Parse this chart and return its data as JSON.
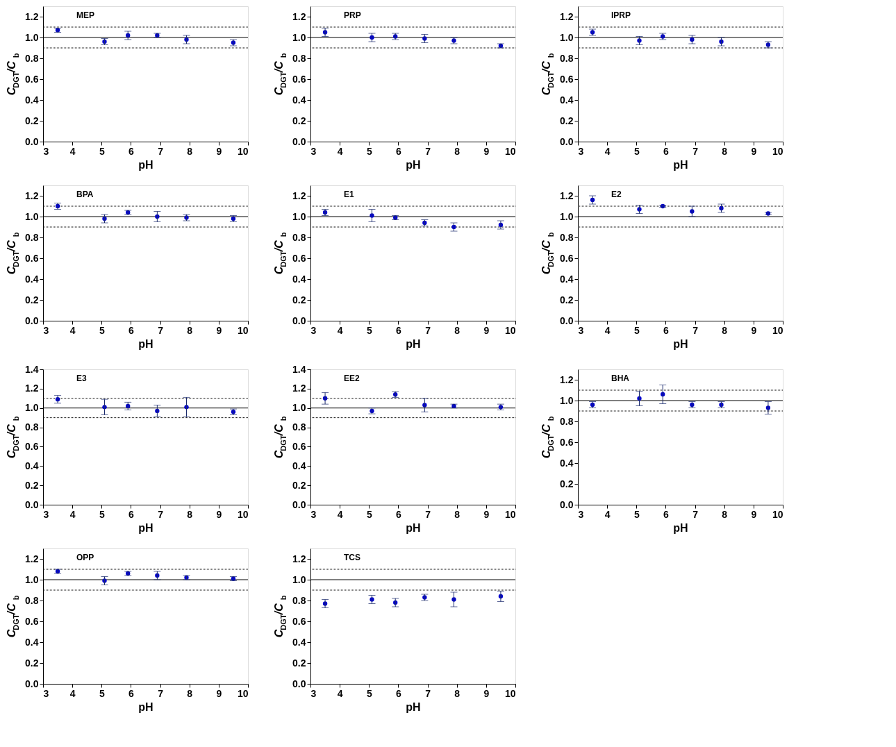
{
  "chart_data": [
    {
      "type": "scatter",
      "title": "MEP",
      "xlabel": "pH",
      "ylabel": "C$_{DGT}$/C$_{b}$",
      "x": [
        3.5,
        5.1,
        5.9,
        6.9,
        7.9,
        9.5
      ],
      "series": [
        {
          "color": "#0000cc",
          "values": [
            1.07,
            0.96,
            1.02,
            1.02,
            0.98,
            0.95
          ],
          "errors": [
            0.02,
            0.03,
            0.04,
            0.02,
            0.04,
            0.03
          ]
        }
      ],
      "xlim": [
        3,
        10
      ],
      "xticks": [
        3,
        4,
        5,
        6,
        7,
        8,
        9,
        10
      ],
      "ylim": [
        0,
        1.3
      ],
      "yticks": [
        {
          "value": 0,
          "label": "0.0"
        },
        {
          "value": 0.2,
          "label": "0.2"
        },
        {
          "value": 0.4,
          "label": "0.4"
        },
        {
          "value": 0.6,
          "label": "0.6"
        },
        {
          "value": 0.8,
          "label": "0.8"
        },
        {
          "value": 1,
          "label": "1.0"
        },
        {
          "value": 1.2,
          "label": "1.2"
        }
      ],
      "marker": "circle",
      "grid": false,
      "ref_lines": [
        {
          "axis": "y",
          "value": 1.0,
          "line_style": "solid"
        },
        {
          "axis": "y",
          "value": 1.1,
          "line_style": "dotted"
        },
        {
          "axis": "y",
          "value": 0.9,
          "line_style": "dotted"
        }
      ]
    },
    {
      "type": "scatter",
      "title": "PRP",
      "xlabel": "pH",
      "ylabel": "C$_{DGT}$/C$_{b}$",
      "x": [
        3.5,
        5.1,
        5.9,
        6.9,
        7.9,
        9.5
      ],
      "series": [
        {
          "color": "#0000cc",
          "values": [
            1.05,
            1.0,
            1.01,
            0.99,
            0.97,
            0.92
          ],
          "errors": [
            0.04,
            0.04,
            0.03,
            0.04,
            0.03,
            0.02
          ]
        }
      ],
      "xlim": [
        3,
        10
      ],
      "xticks": [
        3,
        4,
        5,
        6,
        7,
        8,
        9,
        10
      ],
      "ylim": [
        0,
        1.3
      ],
      "yticks": [
        {
          "value": 0,
          "label": "0.0"
        },
        {
          "value": 0.2,
          "label": "0.2"
        },
        {
          "value": 0.4,
          "label": "0.4"
        },
        {
          "value": 0.6,
          "label": "0.6"
        },
        {
          "value": 0.8,
          "label": "0.8"
        },
        {
          "value": 1,
          "label": "1.0"
        },
        {
          "value": 1.2,
          "label": "1.2"
        }
      ],
      "marker": "circle",
      "grid": false,
      "ref_lines": [
        {
          "axis": "y",
          "value": 1.0,
          "line_style": "solid"
        },
        {
          "axis": "y",
          "value": 1.1,
          "line_style": "dotted"
        },
        {
          "axis": "y",
          "value": 0.9,
          "line_style": "dotted"
        }
      ]
    },
    {
      "type": "scatter",
      "title": "IPRP",
      "xlabel": "pH",
      "ylabel": "C$_{DGT}$/C$_{b}$",
      "x": [
        3.5,
        5.1,
        5.9,
        6.9,
        7.9,
        9.5
      ],
      "series": [
        {
          "color": "#0000cc",
          "values": [
            1.05,
            0.97,
            1.01,
            0.98,
            0.96,
            0.93
          ],
          "errors": [
            0.03,
            0.04,
            0.03,
            0.04,
            0.04,
            0.03
          ]
        }
      ],
      "xlim": [
        3,
        10
      ],
      "xticks": [
        3,
        4,
        5,
        6,
        7,
        8,
        9,
        10
      ],
      "ylim": [
        0,
        1.3
      ],
      "yticks": [
        {
          "value": 0,
          "label": "0.0"
        },
        {
          "value": 0.2,
          "label": "0.2"
        },
        {
          "value": 0.4,
          "label": "0.4"
        },
        {
          "value": 0.6,
          "label": "0.6"
        },
        {
          "value": 0.8,
          "label": "0.8"
        },
        {
          "value": 1,
          "label": "1.0"
        },
        {
          "value": 1.2,
          "label": "1.2"
        }
      ],
      "marker": "circle",
      "grid": false,
      "ref_lines": [
        {
          "axis": "y",
          "value": 1.0,
          "line_style": "solid"
        },
        {
          "axis": "y",
          "value": 1.1,
          "line_style": "dotted"
        },
        {
          "axis": "y",
          "value": 0.9,
          "line_style": "dotted"
        }
      ]
    },
    {
      "type": "scatter",
      "title": "BPA",
      "xlabel": "pH",
      "ylabel": "C$_{DGT}$/C$_{b}$",
      "x": [
        3.5,
        5.1,
        5.9,
        6.9,
        7.9,
        9.5
      ],
      "series": [
        {
          "color": "#0000cc",
          "values": [
            1.1,
            0.98,
            1.04,
            1.0,
            0.99,
            0.98
          ],
          "errors": [
            0.03,
            0.04,
            0.02,
            0.05,
            0.03,
            0.03
          ]
        }
      ],
      "xlim": [
        3,
        10
      ],
      "xticks": [
        3,
        4,
        5,
        6,
        7,
        8,
        9,
        10
      ],
      "ylim": [
        0,
        1.3
      ],
      "yticks": [
        {
          "value": 0,
          "label": "0.0"
        },
        {
          "value": 0.2,
          "label": "0.2"
        },
        {
          "value": 0.4,
          "label": "0.4"
        },
        {
          "value": 0.6,
          "label": "0.6"
        },
        {
          "value": 0.8,
          "label": "0.8"
        },
        {
          "value": 1,
          "label": "1.0"
        },
        {
          "value": 1.2,
          "label": "1.2"
        }
      ],
      "marker": "circle",
      "grid": false,
      "ref_lines": [
        {
          "axis": "y",
          "value": 1.0,
          "line_style": "solid"
        },
        {
          "axis": "y",
          "value": 1.1,
          "line_style": "dotted"
        },
        {
          "axis": "y",
          "value": 0.9,
          "line_style": "dotted"
        }
      ]
    },
    {
      "type": "scatter",
      "title": "E1",
      "xlabel": "pH",
      "ylabel": "C$_{DGT}$/C$_{b}$",
      "x": [
        3.5,
        5.1,
        5.9,
        6.9,
        7.9,
        9.5
      ],
      "series": [
        {
          "color": "#0000cc",
          "values": [
            1.04,
            1.01,
            0.99,
            0.94,
            0.9,
            0.92
          ],
          "errors": [
            0.03,
            0.06,
            0.02,
            0.03,
            0.04,
            0.04
          ]
        }
      ],
      "xlim": [
        3,
        10
      ],
      "xticks": [
        3,
        4,
        5,
        6,
        7,
        8,
        9,
        10
      ],
      "ylim": [
        0,
        1.3
      ],
      "yticks": [
        {
          "value": 0,
          "label": "0.0"
        },
        {
          "value": 0.2,
          "label": "0.2"
        },
        {
          "value": 0.4,
          "label": "0.4"
        },
        {
          "value": 0.6,
          "label": "0.6"
        },
        {
          "value": 0.8,
          "label": "0.8"
        },
        {
          "value": 1,
          "label": "1.0"
        },
        {
          "value": 1.2,
          "label": "1.2"
        }
      ],
      "marker": "circle",
      "grid": false,
      "ref_lines": [
        {
          "axis": "y",
          "value": 1.0,
          "line_style": "solid"
        },
        {
          "axis": "y",
          "value": 1.1,
          "line_style": "dotted"
        },
        {
          "axis": "y",
          "value": 0.9,
          "line_style": "dotted"
        }
      ]
    },
    {
      "type": "scatter",
      "title": "E2",
      "xlabel": "pH",
      "ylabel": "C$_{DGT}$/C$_{b}$",
      "x": [
        3.5,
        5.1,
        5.9,
        6.9,
        7.9,
        9.5
      ],
      "series": [
        {
          "color": "#0000cc",
          "values": [
            1.16,
            1.07,
            1.1,
            1.05,
            1.08,
            1.03
          ],
          "errors": [
            0.04,
            0.04,
            0.01,
            0.05,
            0.04,
            0.01
          ]
        }
      ],
      "xlim": [
        3,
        10
      ],
      "xticks": [
        3,
        4,
        5,
        6,
        7,
        8,
        9,
        10
      ],
      "ylim": [
        0,
        1.3
      ],
      "yticks": [
        {
          "value": 0,
          "label": "0.0"
        },
        {
          "value": 0.2,
          "label": "0.2"
        },
        {
          "value": 0.4,
          "label": "0.4"
        },
        {
          "value": 0.6,
          "label": "0.6"
        },
        {
          "value": 0.8,
          "label": "0.8"
        },
        {
          "value": 1,
          "label": "1.0"
        },
        {
          "value": 1.2,
          "label": "1.2"
        }
      ],
      "marker": "circle",
      "grid": false,
      "ref_lines": [
        {
          "axis": "y",
          "value": 1.0,
          "line_style": "solid"
        },
        {
          "axis": "y",
          "value": 1.1,
          "line_style": "dotted"
        },
        {
          "axis": "y",
          "value": 0.9,
          "line_style": "dotted"
        }
      ]
    },
    {
      "type": "scatter",
      "title": "E3",
      "xlabel": "pH",
      "ylabel": "C$_{DGT}$/C$_{b}$",
      "x": [
        3.5,
        5.1,
        5.9,
        6.9,
        7.9,
        9.5
      ],
      "series": [
        {
          "color": "#0000cc",
          "values": [
            1.09,
            1.01,
            1.02,
            0.97,
            1.01,
            0.96
          ],
          "errors": [
            0.04,
            0.08,
            0.04,
            0.06,
            0.1,
            0.03
          ]
        }
      ],
      "xlim": [
        3,
        10
      ],
      "xticks": [
        3,
        4,
        5,
        6,
        7,
        8,
        9,
        10
      ],
      "ylim": [
        0,
        1.4
      ],
      "yticks": [
        {
          "value": 0,
          "label": "0.0"
        },
        {
          "value": 0.2,
          "label": "0.2"
        },
        {
          "value": 0.4,
          "label": "0.4"
        },
        {
          "value": 0.6,
          "label": "0.6"
        },
        {
          "value": 0.8,
          "label": "0.8"
        },
        {
          "value": 1,
          "label": "1.0"
        },
        {
          "value": 1.2,
          "label": "1.2"
        },
        {
          "value": 1.4,
          "label": "1.4"
        }
      ],
      "marker": "circle",
      "grid": false,
      "ref_lines": [
        {
          "axis": "y",
          "value": 1.0,
          "line_style": "solid"
        },
        {
          "axis": "y",
          "value": 1.1,
          "line_style": "dotted"
        },
        {
          "axis": "y",
          "value": 0.9,
          "line_style": "dotted"
        }
      ]
    },
    {
      "type": "scatter",
      "title": "EE2",
      "xlabel": "pH",
      "ylabel": "C$_{DGT}$/C$_{b}$",
      "x": [
        3.5,
        5.1,
        5.9,
        6.9,
        7.9,
        9.5
      ],
      "series": [
        {
          "color": "#0000cc",
          "values": [
            1.1,
            0.97,
            1.14,
            1.03,
            1.02,
            1.01
          ],
          "errors": [
            0.06,
            0.03,
            0.03,
            0.07,
            0.02,
            0.03
          ]
        }
      ],
      "xlim": [
        3,
        10
      ],
      "xticks": [
        3,
        4,
        5,
        6,
        7,
        8,
        9,
        10
      ],
      "ylim": [
        0,
        1.4
      ],
      "yticks": [
        {
          "value": 0,
          "label": "0.0"
        },
        {
          "value": 0.2,
          "label": "0.2"
        },
        {
          "value": 0.4,
          "label": "0.4"
        },
        {
          "value": 0.6,
          "label": "0.6"
        },
        {
          "value": 0.8,
          "label": "0.8"
        },
        {
          "value": 1,
          "label": "1.0"
        },
        {
          "value": 1.2,
          "label": "1.2"
        },
        {
          "value": 1.4,
          "label": "1.4"
        }
      ],
      "marker": "circle",
      "grid": false,
      "ref_lines": [
        {
          "axis": "y",
          "value": 1.0,
          "line_style": "solid"
        },
        {
          "axis": "y",
          "value": 1.1,
          "line_style": "dotted"
        },
        {
          "axis": "y",
          "value": 0.9,
          "line_style": "dotted"
        }
      ]
    },
    {
      "type": "scatter",
      "title": "BHA",
      "xlabel": "pH",
      "ylabel": "C$_{DGT}$/C$_{b}$",
      "x": [
        3.5,
        5.1,
        5.9,
        6.9,
        7.9,
        9.5
      ],
      "series": [
        {
          "color": "#0000cc",
          "values": [
            0.96,
            1.02,
            1.06,
            0.96,
            0.96,
            0.93
          ],
          "errors": [
            0.03,
            0.07,
            0.09,
            0.03,
            0.03,
            0.06
          ]
        }
      ],
      "xlim": [
        3,
        10
      ],
      "xticks": [
        3,
        4,
        5,
        6,
        7,
        8,
        9,
        10
      ],
      "ylim": [
        0,
        1.3
      ],
      "yticks": [
        {
          "value": 0,
          "label": "0.0"
        },
        {
          "value": 0.2,
          "label": "0.2"
        },
        {
          "value": 0.4,
          "label": "0.4"
        },
        {
          "value": 0.6,
          "label": "0.6"
        },
        {
          "value": 0.8,
          "label": "0.8"
        },
        {
          "value": 1,
          "label": "1.0"
        },
        {
          "value": 1.2,
          "label": "1.2"
        }
      ],
      "marker": "circle",
      "grid": false,
      "ref_lines": [
        {
          "axis": "y",
          "value": 1.0,
          "line_style": "solid"
        },
        {
          "axis": "y",
          "value": 1.1,
          "line_style": "dotted"
        },
        {
          "axis": "y",
          "value": 0.9,
          "line_style": "dotted"
        }
      ]
    },
    {
      "type": "scatter",
      "title": "OPP",
      "xlabel": "pH",
      "ylabel": "C$_{DGT}$/C$_{b}$",
      "x": [
        3.5,
        5.1,
        5.9,
        6.9,
        7.9,
        9.5
      ],
      "series": [
        {
          "color": "#0000cc",
          "values": [
            1.08,
            0.99,
            1.06,
            1.04,
            1.02,
            1.01
          ],
          "errors": [
            0.02,
            0.04,
            0.02,
            0.04,
            0.02,
            0.02
          ]
        }
      ],
      "xlim": [
        3,
        10
      ],
      "xticks": [
        3,
        4,
        5,
        6,
        7,
        8,
        9,
        10
      ],
      "ylim": [
        0,
        1.3
      ],
      "yticks": [
        {
          "value": 0,
          "label": "0.0"
        },
        {
          "value": 0.2,
          "label": "0.2"
        },
        {
          "value": 0.4,
          "label": "0.4"
        },
        {
          "value": 0.6,
          "label": "0.6"
        },
        {
          "value": 0.8,
          "label": "0.8"
        },
        {
          "value": 1,
          "label": "1.0"
        },
        {
          "value": 1.2,
          "label": "1.2"
        }
      ],
      "marker": "circle",
      "grid": false,
      "ref_lines": [
        {
          "axis": "y",
          "value": 1.0,
          "line_style": "solid"
        },
        {
          "axis": "y",
          "value": 1.1,
          "line_style": "dotted"
        },
        {
          "axis": "y",
          "value": 0.9,
          "line_style": "dotted"
        }
      ]
    },
    {
      "type": "scatter",
      "title": "TCS",
      "xlabel": "pH",
      "ylabel": "C$_{DGT}$/C$_{b}$",
      "x": [
        3.5,
        5.1,
        5.9,
        6.9,
        7.9,
        9.5
      ],
      "series": [
        {
          "color": "#0000cc",
          "values": [
            0.77,
            0.81,
            0.78,
            0.83,
            0.81,
            0.84
          ],
          "errors": [
            0.04,
            0.04,
            0.04,
            0.03,
            0.07,
            0.05
          ]
        }
      ],
      "xlim": [
        3,
        10
      ],
      "xticks": [
        3,
        4,
        5,
        6,
        7,
        8,
        9,
        10
      ],
      "ylim": [
        0,
        1.3
      ],
      "yticks": [
        {
          "value": 0,
          "label": "0.0"
        },
        {
          "value": 0.2,
          "label": "0.2"
        },
        {
          "value": 0.4,
          "label": "0.4"
        },
        {
          "value": 0.6,
          "label": "0.6"
        },
        {
          "value": 0.8,
          "label": "0.8"
        },
        {
          "value": 1,
          "label": "1.0"
        },
        {
          "value": 1.2,
          "label": "1.2"
        }
      ],
      "marker": "circle",
      "grid": false,
      "ref_lines": [
        {
          "axis": "y",
          "value": 1.0,
          "line_style": "solid"
        },
        {
          "axis": "y",
          "value": 1.1,
          "line_style": "dotted"
        },
        {
          "axis": "y",
          "value": 0.9,
          "line_style": "dotted"
        }
      ]
    }
  ]
}
